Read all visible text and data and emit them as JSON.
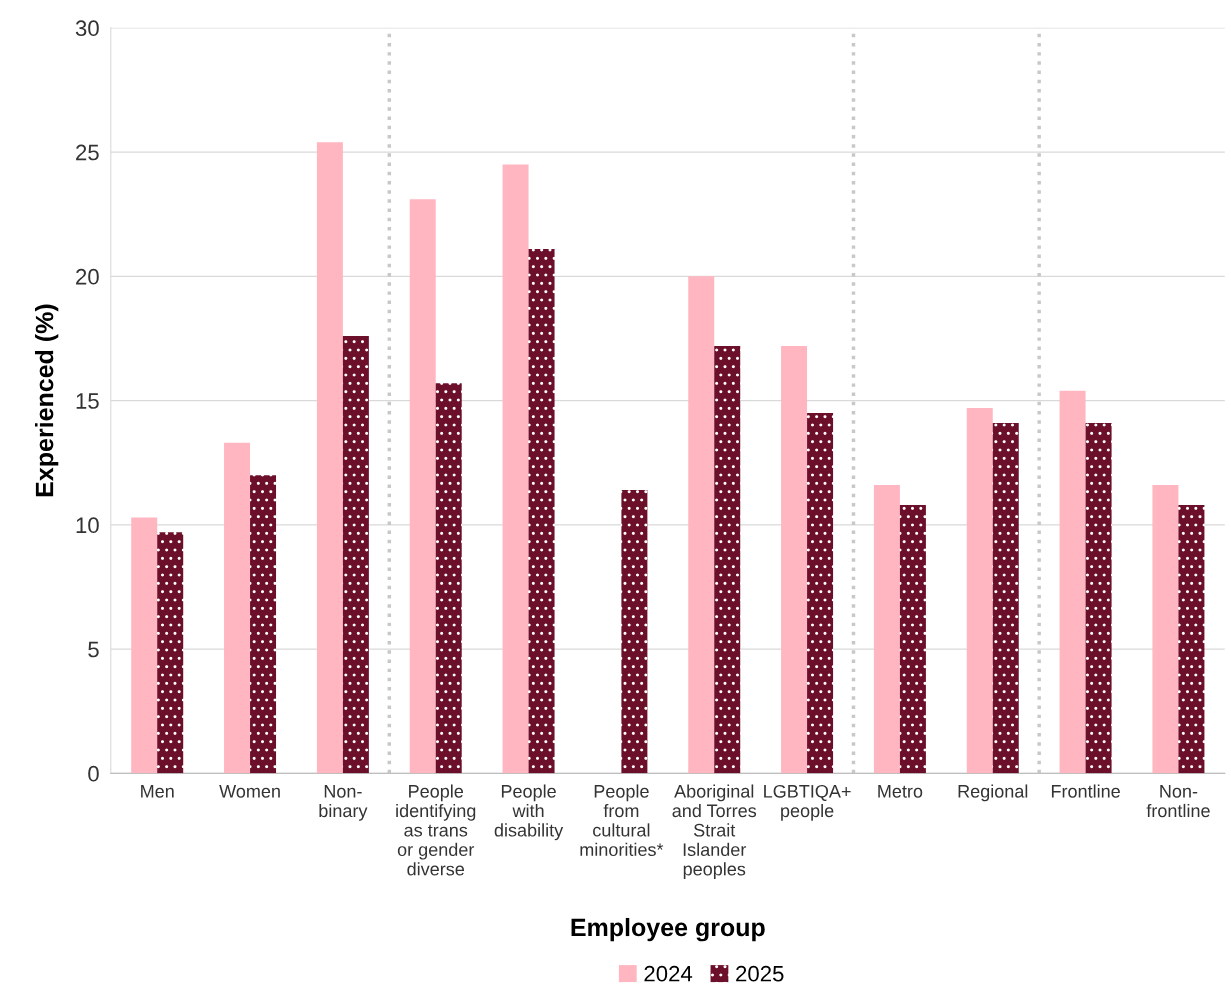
{
  "chart_data": {
    "type": "bar",
    "xlabel": "Employee group",
    "ylabel": "Experienced (%)",
    "categories": [
      "Men",
      "Women",
      "Non-\nbinary",
      "People\nidentifying\nas trans\nor gender\ndiverse",
      "People\nwith\ndisability",
      "People\nfrom\ncultural\nminorities*",
      "Aboriginal\nand Torres\nStrait\nIslander\npeoples",
      "LGBTIQA+\npeople",
      "Metro",
      "Regional",
      "Frontline",
      "Non-\nfrontline"
    ],
    "series": [
      {
        "name": "2024",
        "color": "#ffb6c1",
        "values": [
          10.3,
          13.3,
          25.4,
          23.1,
          24.5,
          null,
          20.0,
          17.2,
          11.6,
          14.7,
          15.4,
          11.6
        ]
      },
      {
        "name": "2025",
        "color": "#6b0f2a",
        "values": [
          9.7,
          12.0,
          17.6,
          15.7,
          21.1,
          11.4,
          17.2,
          14.5,
          10.8,
          14.1,
          14.1,
          10.8
        ]
      }
    ],
    "ylim": [
      0,
      30
    ],
    "yticks": [
      0,
      5,
      10,
      15,
      20,
      25,
      30
    ],
    "grid": "y",
    "legend": "bottom"
  }
}
